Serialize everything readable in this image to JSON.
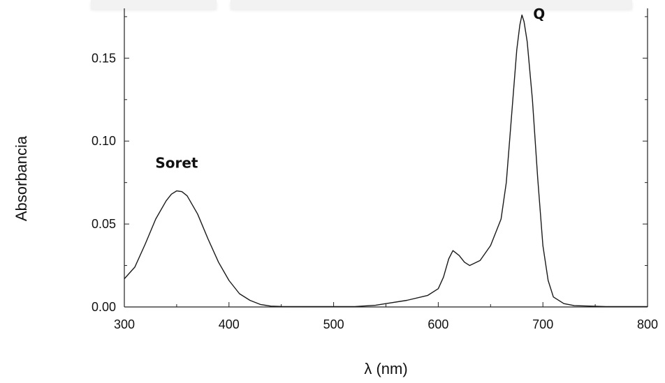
{
  "chart_data": {
    "type": "line",
    "xlabel": "λ (nm)",
    "ylabel": "Absorbancia",
    "xlim": [
      300,
      800
    ],
    "ylim": [
      0,
      0.18
    ],
    "x_ticks": [
      300,
      400,
      500,
      600,
      700,
      800
    ],
    "y_ticks": [
      0.0,
      0.05,
      0.1,
      0.15
    ],
    "y_tick_labels": [
      "0.00",
      "0.05",
      "0.10",
      "0.15"
    ],
    "grid": false,
    "series": [
      {
        "x": [
          300,
          310,
          320,
          330,
          340,
          345,
          350,
          355,
          360,
          370,
          380,
          390,
          400,
          410,
          420,
          430,
          440,
          450,
          480,
          520,
          540,
          550,
          570,
          590,
          600,
          605,
          610,
          614,
          620,
          625,
          630,
          640,
          650,
          660,
          665,
          670,
          675,
          678,
          680,
          682,
          685,
          690,
          695,
          700,
          705,
          710,
          720,
          730,
          760,
          800
        ],
        "y": [
          0.017,
          0.024,
          0.038,
          0.053,
          0.064,
          0.068,
          0.07,
          0.0695,
          0.067,
          0.056,
          0.041,
          0.027,
          0.016,
          0.008,
          0.004,
          0.0015,
          0.0005,
          0.0003,
          0.0002,
          0.0002,
          0.001,
          0.002,
          0.004,
          0.007,
          0.011,
          0.018,
          0.029,
          0.034,
          0.031,
          0.027,
          0.025,
          0.028,
          0.037,
          0.053,
          0.075,
          0.115,
          0.155,
          0.17,
          0.176,
          0.172,
          0.16,
          0.125,
          0.078,
          0.037,
          0.016,
          0.006,
          0.002,
          0.0008,
          0.0002,
          0.0002
        ]
      }
    ],
    "annotations": [
      {
        "text": "Soret",
        "x": 350,
        "y": 0.084
      },
      {
        "text": "Q",
        "x": 688,
        "y": 0.182
      }
    ]
  }
}
